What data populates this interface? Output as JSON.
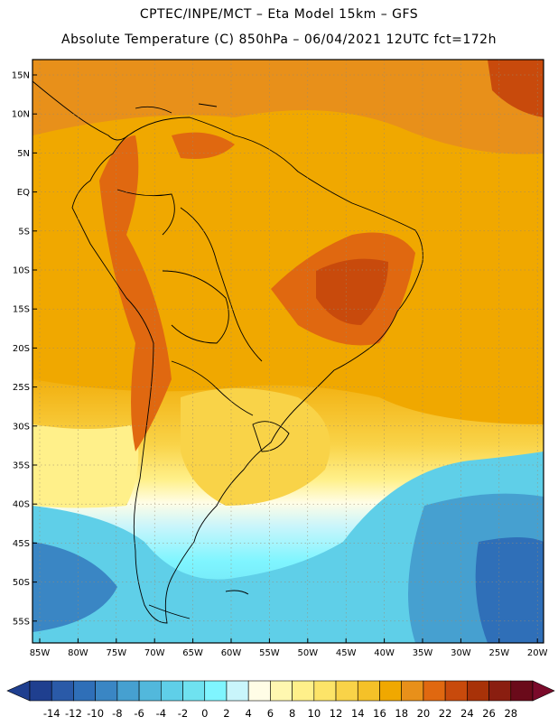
{
  "header": {
    "line1": "CPTEC/INPE/MCT –   Eta Model 15km – GFS",
    "line2": "Absolute Temperature (C) 850hPa – 06/04/2021 12UTC fct=172h"
  },
  "map": {
    "lat_labels": [
      "15N",
      "10N",
      "5N",
      "EQ",
      "5S",
      "10S",
      "15S",
      "20S",
      "25S",
      "30S",
      "35S",
      "40S",
      "45S",
      "50S",
      "55S"
    ],
    "lon_labels": [
      "85W",
      "80W",
      "75W",
      "70W",
      "65W",
      "60W",
      "55W",
      "50W",
      "45W",
      "40W",
      "35W",
      "30W",
      "25W",
      "20W"
    ],
    "ocean_color": "#f0a800",
    "land_outline_color": "#000000"
  },
  "colorbar": {
    "labels": [
      "-14",
      "-12",
      "-10",
      "-8",
      "-6",
      "-4",
      "-2",
      "0",
      "2",
      "4",
      "6",
      "8",
      "10",
      "12",
      "14",
      "16",
      "18",
      "20",
      "22",
      "24",
      "26",
      "28"
    ],
    "colors": [
      "#1f3f8f",
      "#2a5aa8",
      "#2f6fb8",
      "#3a86c4",
      "#46a0d0",
      "#52b8dc",
      "#5fcfe8",
      "#6fe2f0",
      "#7ff5ff",
      "#c9f5fb",
      "#fffde6",
      "#fff7b0",
      "#fff08a",
      "#fde468",
      "#f9d348",
      "#f5c128",
      "#f0a800",
      "#e8901a",
      "#e06810",
      "#c84a0c",
      "#a83208",
      "#8a1e10",
      "#6a0a1a"
    ]
  }
}
